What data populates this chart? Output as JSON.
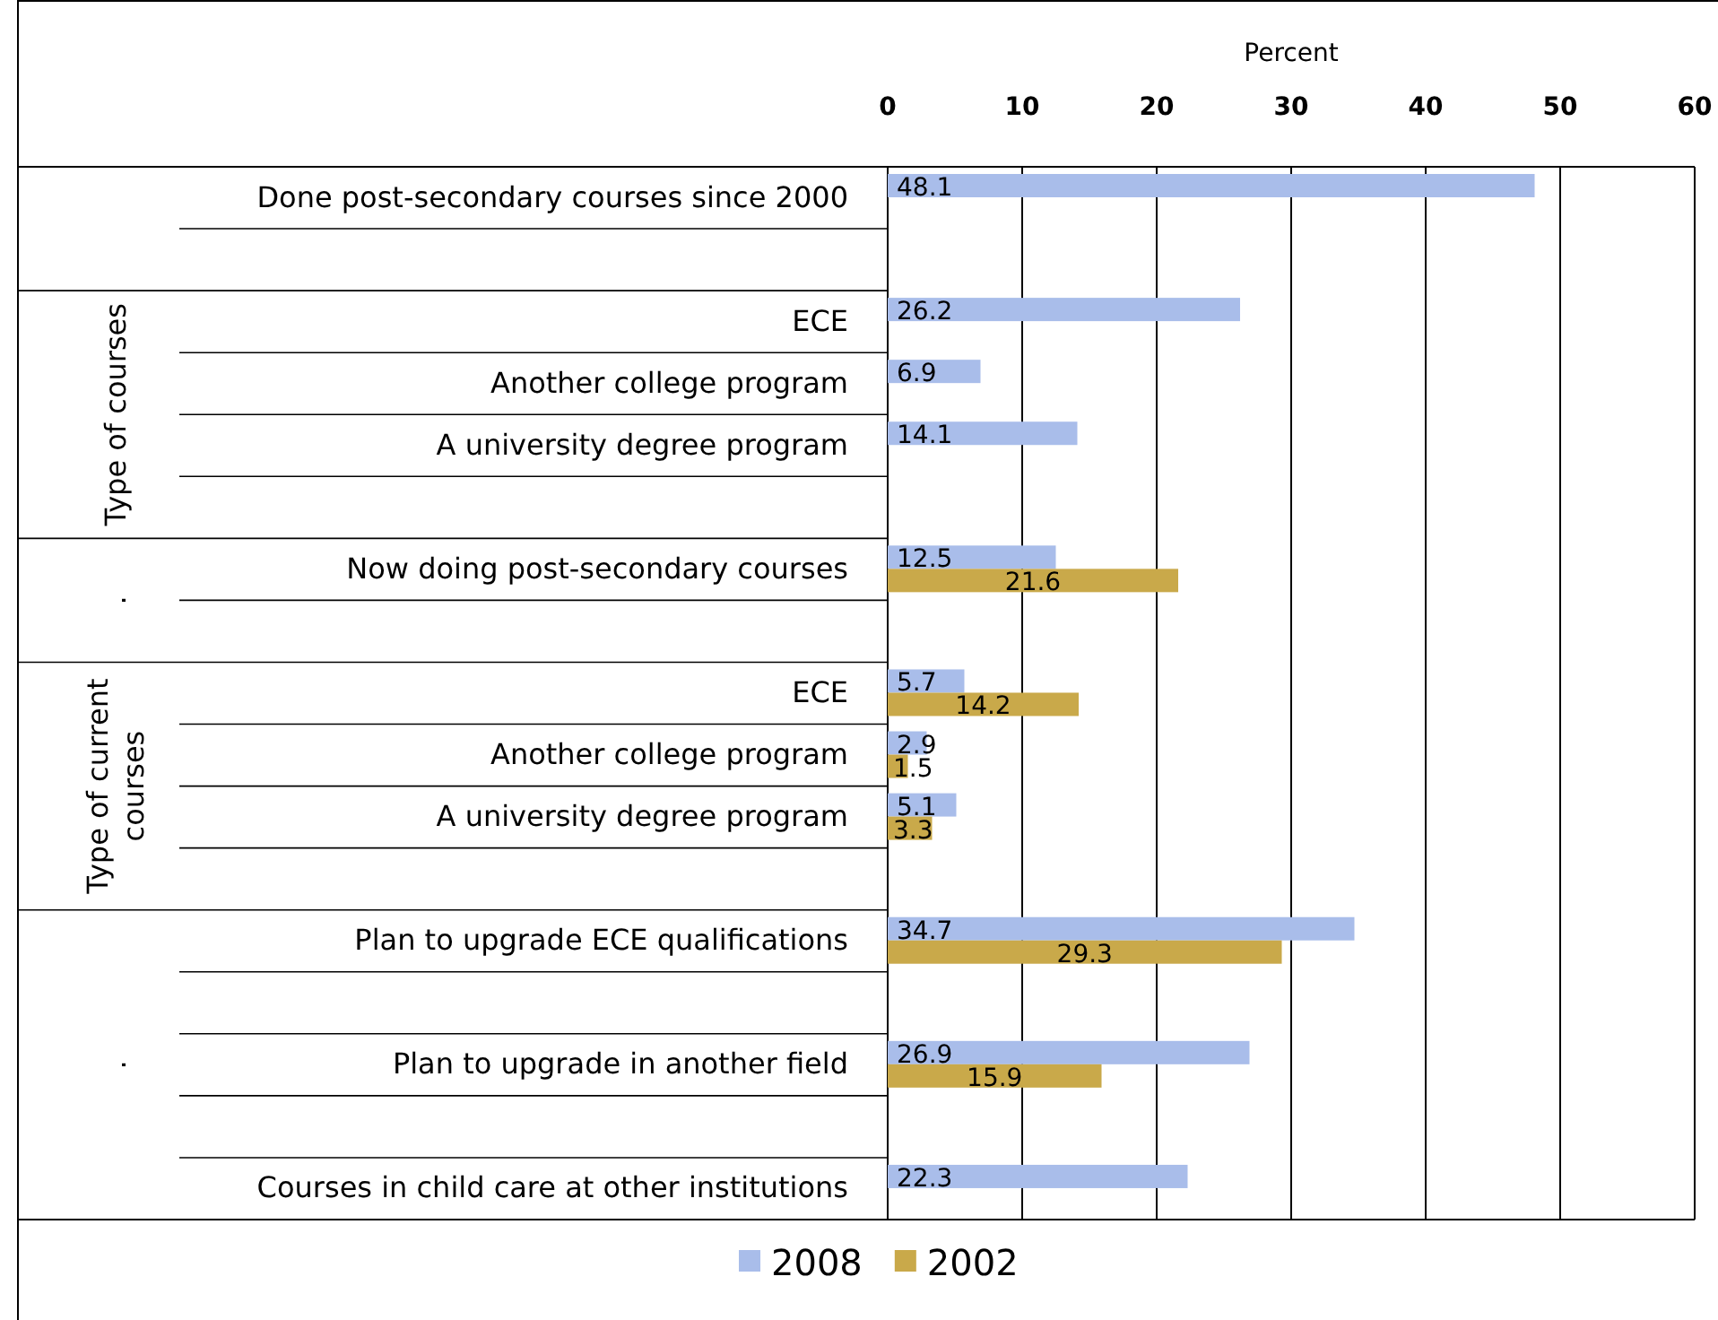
{
  "chart_data": {
    "type": "bar",
    "orientation": "horizontal",
    "xlabel": "Percent",
    "categories": [
      "Done post-secondary courses since 2000",
      null,
      "ECE",
      "Another college program",
      "A university degree program",
      null,
      "Now doing post-secondary courses",
      null,
      "ECE",
      "Another college program",
      "A university degree program",
      null,
      "Plan to upgrade ECE qualifications",
      null,
      "Plan to upgrade in another field",
      null,
      "Courses in child care at other institutions"
    ],
    "series": [
      {
        "name": "2008",
        "color": "#a9bdea",
        "values": [
          48.1,
          null,
          26.2,
          6.9,
          14.1,
          null,
          12.5,
          null,
          5.7,
          2.9,
          5.1,
          null,
          34.7,
          null,
          26.9,
          null,
          22.3
        ]
      },
      {
        "name": "2002",
        "color": "#c9a94a",
        "values": [
          null,
          null,
          null,
          null,
          null,
          null,
          21.6,
          null,
          14.2,
          1.5,
          3.3,
          null,
          29.3,
          null,
          15.9,
          null,
          null
        ]
      }
    ],
    "xlim": [
      0,
      60
    ],
    "xticks": [
      0,
      10,
      20,
      30,
      40,
      50,
      60
    ],
    "grid": "x",
    "legend": "bottom",
    "data_labels": true,
    "annotations": [
      "Type of courses",
      "Type of current courses",
      ".",
      "."
    ]
  }
}
